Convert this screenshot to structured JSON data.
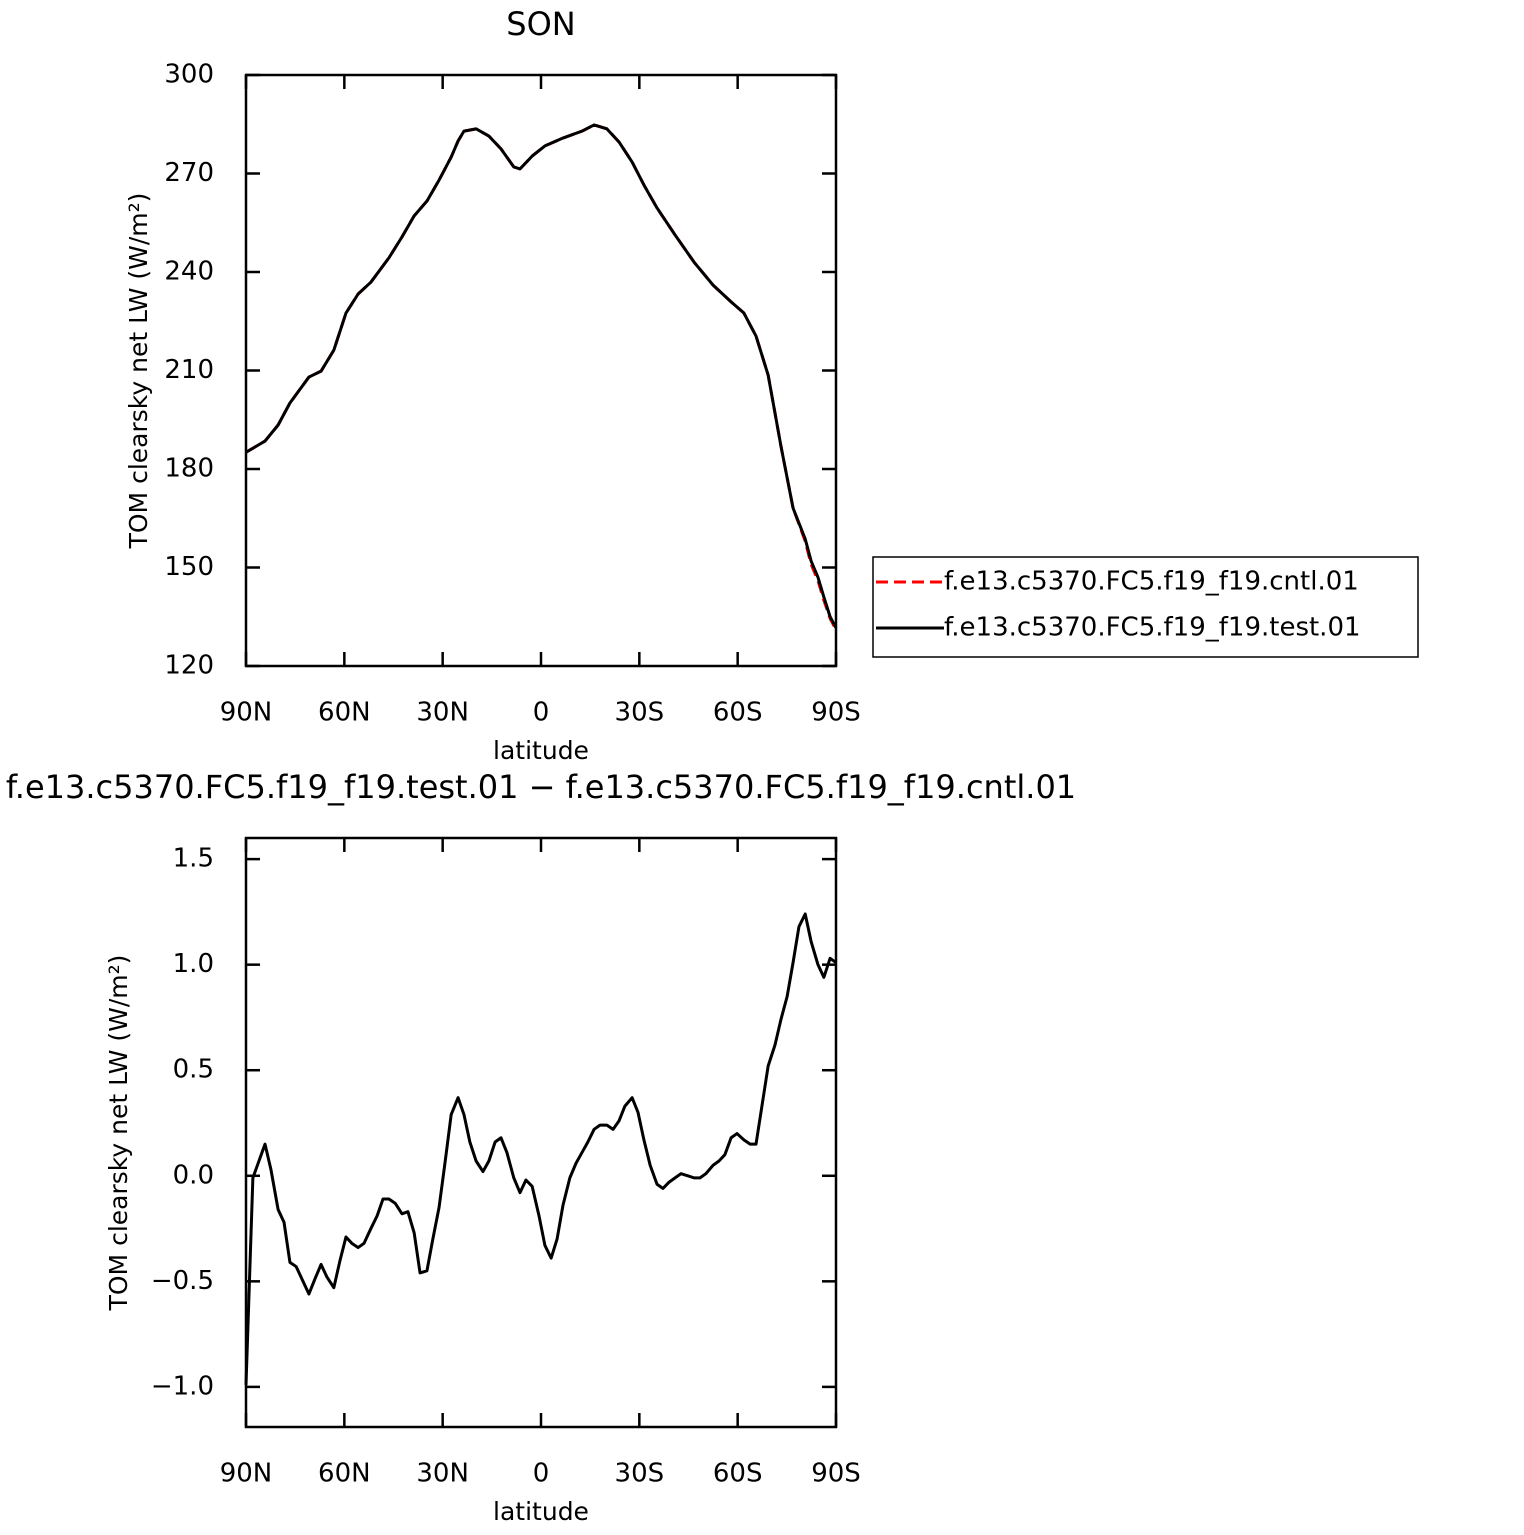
{
  "chart_data": [
    {
      "type": "line",
      "title": "SON",
      "xlabel": "latitude",
      "ylabel": "TOM clearsky net LW (W/m²)",
      "x": [
        90,
        84.2,
        80.2,
        76.6,
        70.8,
        67.1,
        63.2,
        59.5,
        55.8,
        51.9,
        46.4,
        42.4,
        38.7,
        34.8,
        31.1,
        27.4,
        25.3,
        23.5,
        19.8,
        15.9,
        12.2,
        8.3,
        6.4,
        2.7,
        -1.2,
        -6.7,
        -12.5,
        -16.2,
        -20.1,
        -23.8,
        -27.8,
        -31.4,
        -35.4,
        -40.9,
        -46.7,
        -52.5,
        -58,
        -61.9,
        -65.6,
        -69.3,
        -73.2,
        -76.9,
        -80.6,
        -82.4,
        -84.5,
        -86.3,
        -88.2,
        -90
      ],
      "series": [
        {
          "name": "f.e13.c5370.FC5.f19_f19.cntl.01",
          "color": "#ff0000",
          "style": "dashed",
          "values": [
            185.1,
            188.5,
            193.4,
            200.1,
            208.0,
            209.8,
            216.2,
            227.5,
            233.3,
            236.9,
            244.3,
            250.7,
            257.1,
            261.6,
            268.0,
            275.0,
            279.9,
            282.9,
            283.6,
            281.4,
            277.5,
            272.0,
            271.4,
            275.3,
            278.4,
            280.8,
            282.9,
            284.8,
            283.6,
            279.6,
            273.5,
            266.5,
            259.5,
            251.3,
            243.0,
            236.0,
            230.9,
            227.5,
            220.5,
            208.6,
            187.0,
            168.1,
            158.0,
            151.0,
            146.0,
            140.0,
            134.5,
            131.0
          ]
        },
        {
          "name": "f.e13.c5370.FC5.f19_f19.test.01",
          "color": "#000000",
          "style": "solid",
          "values": [
            185.1,
            188.5,
            193.4,
            200.1,
            208.0,
            209.8,
            216.2,
            227.5,
            233.3,
            236.9,
            244.3,
            250.7,
            257.1,
            261.6,
            268.0,
            275.0,
            279.9,
            282.9,
            283.6,
            281.4,
            277.5,
            272.0,
            271.4,
            275.3,
            278.4,
            280.8,
            282.9,
            284.8,
            283.6,
            279.6,
            273.5,
            266.5,
            259.5,
            251.3,
            243.0,
            236.0,
            230.9,
            227.5,
            220.5,
            208.6,
            187.0,
            168.1,
            158.7,
            152.0,
            147.0,
            141.0,
            135.0,
            131.6
          ]
        }
      ],
      "xlim": [
        90,
        -90
      ],
      "xticks": [
        {
          "value": 90,
          "label": "90N"
        },
        {
          "value": 60,
          "label": "60N"
        },
        {
          "value": 30,
          "label": "30N"
        },
        0,
        {
          "value": -30,
          "label": "30S"
        },
        {
          "value": -60,
          "label": "60S"
        },
        {
          "value": -90,
          "label": "90S"
        }
      ],
      "ylim": [
        120,
        300
      ],
      "yticks": [
        120,
        150,
        180,
        210,
        240,
        270,
        300
      ],
      "legend": "right"
    },
    {
      "type": "line",
      "title": "f.e13.c5370.FC5.f19_f19.test.01 − f.e13.c5370.FC5.f19_f19.cntl.01",
      "xlabel": "latitude",
      "ylabel": "TOM clearsky net LW (W/m²)",
      "x": [
        90,
        87.9,
        84.2,
        82.4,
        80.2,
        78.4,
        76.6,
        74.7,
        72.9,
        70.8,
        69,
        67.1,
        65.3,
        63.2,
        61.3,
        59.5,
        57.7,
        55.8,
        54,
        51.9,
        50,
        48.2,
        46.4,
        44.5,
        42.4,
        40.6,
        38.7,
        36.9,
        34.8,
        33,
        31.1,
        29.3,
        27.4,
        25.3,
        23.5,
        21.7,
        19.8,
        17.7,
        15.9,
        14,
        12.2,
        10.4,
        8.3,
        6.4,
        4.6,
        2.7,
        0.6,
        -1.2,
        -3.1,
        -4.9,
        -6.7,
        -8.8,
        -10.7,
        -12.5,
        -14.3,
        -16.2,
        -18,
        -20.1,
        -22,
        -23.8,
        -25.6,
        -27.8,
        -29.6,
        -31.4,
        -33.3,
        -35.4,
        -37.2,
        -39.1,
        -40.9,
        -42.7,
        -44.8,
        -46.7,
        -48.5,
        -50.3,
        -52.5,
        -54.3,
        -56.1,
        -58,
        -59.8,
        -61.9,
        -63.8,
        -65.6,
        -67.4,
        -69.3,
        -71.4,
        -73.2,
        -75.1,
        -76.9,
        -78.7,
        -80.6,
        -82.4,
        -84.5,
        -86.3,
        -88.2,
        -90
      ],
      "series": [
        {
          "color": "#000000",
          "style": "solid",
          "values": [
            -0.99,
            -0.01,
            0.15,
            0.03,
            -0.16,
            -0.22,
            -0.41,
            -0.43,
            -0.49,
            -0.56,
            -0.49,
            -0.42,
            -0.48,
            -0.53,
            -0.4,
            -0.29,
            -0.32,
            -0.34,
            -0.32,
            -0.25,
            -0.19,
            -0.11,
            -0.11,
            -0.13,
            -0.18,
            -0.17,
            -0.27,
            -0.46,
            -0.45,
            -0.3,
            -0.15,
            0.06,
            0.29,
            0.37,
            0.29,
            0.16,
            0.07,
            0.02,
            0.07,
            0.16,
            0.18,
            0.11,
            -0.01,
            -0.08,
            -0.02,
            -0.05,
            -0.19,
            -0.33,
            -0.39,
            -0.3,
            -0.14,
            -0.01,
            0.06,
            0.11,
            0.16,
            0.22,
            0.24,
            0.24,
            0.22,
            0.26,
            0.33,
            0.37,
            0.3,
            0.17,
            0.05,
            -0.04,
            -0.06,
            -0.03,
            -0.01,
            0.01,
            0.0,
            -0.01,
            -0.01,
            0.01,
            0.05,
            0.07,
            0.1,
            0.18,
            0.2,
            0.17,
            0.15,
            0.15,
            0.33,
            0.52,
            0.62,
            0.74,
            0.85,
            1.01,
            1.18,
            1.24,
            1.11,
            1.0,
            0.94,
            1.03,
            1.01
          ]
        }
      ],
      "xlim": [
        90,
        -90
      ],
      "xticks": [
        {
          "value": 90,
          "label": "90N"
        },
        {
          "value": 60,
          "label": "60N"
        },
        {
          "value": 30,
          "label": "30N"
        },
        0,
        {
          "value": -30,
          "label": "30S"
        },
        {
          "value": -60,
          "label": "60S"
        },
        {
          "value": -90,
          "label": "90S"
        }
      ],
      "ylim": [
        -1.19,
        1.6
      ],
      "yticks": [
        {
          "value": -1,
          "label": "−1.0"
        },
        {
          "value": -0.5,
          "label": "−0.5"
        },
        {
          "value": 0,
          "label": "0.0"
        },
        0.5,
        {
          "value": 1,
          "label": "1.0"
        },
        1.5
      ]
    }
  ]
}
